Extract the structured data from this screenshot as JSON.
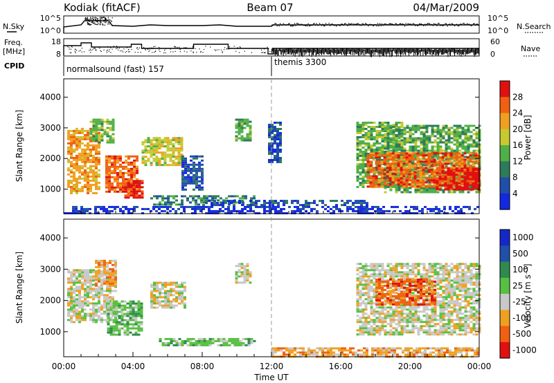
{
  "header": {
    "station": "Kodiak (fitACF)",
    "beam": "Beam 07",
    "date": "04/Mar/2009"
  },
  "panels": {
    "nsky": {
      "left_label": "N.Sky",
      "right_label": "N.Search",
      "left_ticks": [
        "10^5",
        "10^0"
      ],
      "right_ticks": [
        "10^5",
        "10^0"
      ]
    },
    "freq": {
      "left_label_1": "Freq.",
      "left_label_2": "[MHz]",
      "right_label": "Nave",
      "left_ticks": [
        "18",
        "8"
      ],
      "right_ticks": [
        "60",
        "0"
      ]
    },
    "cpid": {
      "label": "CPID",
      "segments": [
        {
          "name": "normalsound (fast) 157",
          "start_hour": 0
        },
        {
          "name": "themis 3300",
          "start_hour": 12
        }
      ]
    }
  },
  "chart_data": [
    {
      "type": "heatmap",
      "title": "Power",
      "ylabel": "Slant Range [km]",
      "xlabel": "Time UT",
      "ylim": [
        200,
        4600
      ],
      "yticks": [
        "1000",
        "2000",
        "3000",
        "4000"
      ],
      "xticks": [
        "00:00",
        "04:00",
        "08:00",
        "12:00",
        "16:00",
        "20:00",
        "00:00"
      ],
      "colorbar": {
        "label": "Power [dB]",
        "ticks": [
          "4",
          "8",
          "12",
          "16",
          "20",
          "24",
          "28"
        ],
        "colors": [
          "#1428e0",
          "#1f4fa8",
          "#2f7a5a",
          "#50b048",
          "#c8c830",
          "#f0a020",
          "#f06010",
          "#e01010"
        ]
      },
      "regions": [
        {
          "t0": 0.2,
          "t1": 2.0,
          "r0": 900,
          "r1": 3000,
          "level": 5
        },
        {
          "t0": 1.5,
          "t1": 2.8,
          "r0": 2500,
          "r1": 3300,
          "level": 3
        },
        {
          "t0": 2.4,
          "t1": 4.3,
          "r0": 900,
          "r1": 2100,
          "level": 6
        },
        {
          "t0": 3.5,
          "t1": 4.6,
          "r0": 750,
          "r1": 1300,
          "level": 7
        },
        {
          "t0": 4.5,
          "t1": 6.8,
          "r0": 1800,
          "r1": 2700,
          "level": 4
        },
        {
          "t0": 6.8,
          "t1": 8.0,
          "r0": 1000,
          "r1": 2100,
          "level": 1
        },
        {
          "t0": 9.9,
          "t1": 10.8,
          "r0": 2600,
          "r1": 3300,
          "level": 3
        },
        {
          "t0": 11.8,
          "t1": 12.6,
          "r0": 1900,
          "r1": 3200,
          "level": 1
        },
        {
          "t0": 16.9,
          "t1": 19.5,
          "r0": 1100,
          "r1": 3200,
          "level": 3
        },
        {
          "t0": 18.5,
          "t1": 24.0,
          "r0": 900,
          "r1": 3100,
          "level": 3
        },
        {
          "t0": 17.5,
          "t1": 24.0,
          "r0": 1100,
          "r1": 2200,
          "level": 6
        },
        {
          "t0": 21.5,
          "t1": 24.0,
          "r0": 1000,
          "r1": 1700,
          "level": 7
        }
      ],
      "ground_echoes": [
        {
          "t0": 5.0,
          "t1": 11.0,
          "r0": 500,
          "r1": 800,
          "level": 2
        },
        {
          "t0": 8.0,
          "t1": 17.5,
          "r0": 450,
          "r1": 650,
          "level": 1
        },
        {
          "t0": 0.0,
          "t1": 24.0,
          "r0": 200,
          "r1": 450,
          "level": 0
        }
      ]
    },
    {
      "type": "heatmap",
      "title": "Velocity",
      "ylabel": "Slant Range [km]",
      "xlabel": "Time UT",
      "ylim": [
        200,
        4600
      ],
      "yticks": [
        "1000",
        "2000",
        "3000",
        "4000"
      ],
      "xticks": [
        "00:00",
        "04:00",
        "08:00",
        "12:00",
        "16:00",
        "20:00",
        "00:00"
      ],
      "colorbar": {
        "label": "Velocity [m s⁻¹]",
        "ticks": [
          "1000",
          "500",
          "100",
          "25",
          "-25",
          "-100",
          "-500",
          "-1000"
        ],
        "colors": [
          "#1428c8",
          "#2050a8",
          "#308a50",
          "#58c040",
          "#c8c8c8",
          "#f0a020",
          "#f06010",
          "#e01010"
        ]
      },
      "regions": [
        {
          "t0": 0.2,
          "t1": 3.0,
          "r0": 1300,
          "r1": 3000,
          "level": 4
        },
        {
          "t0": 2.5,
          "t1": 4.5,
          "r0": 900,
          "r1": 2000,
          "level": 3
        },
        {
          "t0": 1.8,
          "t1": 3.0,
          "r0": 2500,
          "r1": 3300,
          "level": 5
        },
        {
          "t0": 5.0,
          "t1": 7.0,
          "r0": 1800,
          "r1": 2600,
          "level": 4
        },
        {
          "t0": 5.5,
          "t1": 11.0,
          "r0": 550,
          "r1": 800,
          "level": 3
        },
        {
          "t0": 9.9,
          "t1": 10.8,
          "r0": 2600,
          "r1": 3200,
          "level": 4
        },
        {
          "t0": 16.9,
          "t1": 24.0,
          "r0": 900,
          "r1": 3200,
          "level": 4
        },
        {
          "t0": 18.0,
          "t1": 21.5,
          "r0": 1900,
          "r1": 2700,
          "level": 6
        },
        {
          "t0": 12.0,
          "t1": 24.0,
          "r0": 200,
          "r1": 500,
          "level": 5
        }
      ]
    }
  ]
}
